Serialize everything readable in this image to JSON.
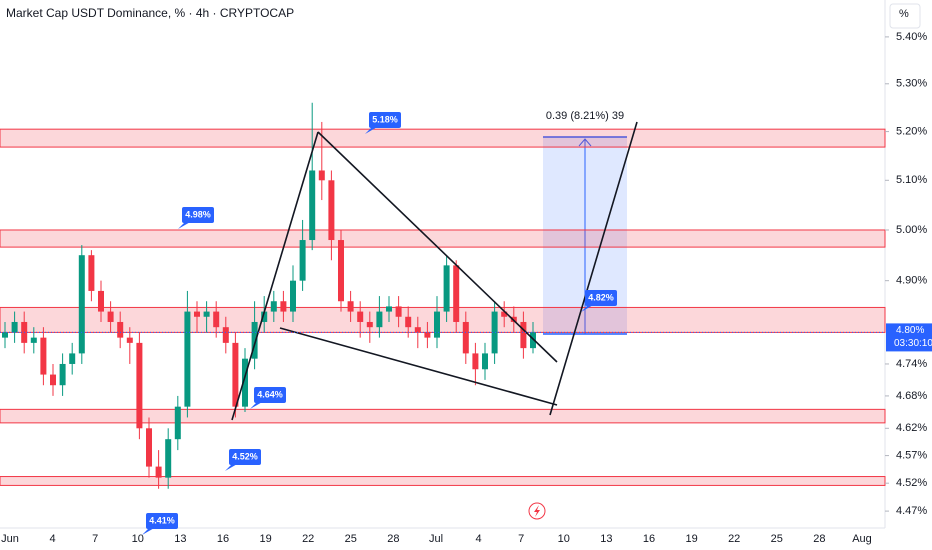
{
  "chart_data": {
    "type": "candlestick",
    "title": "Market Cap USDT Dominance, % · 4h · CRYPTOCAP",
    "y_unit": "%",
    "log_scale": true,
    "ylim": [
      4.44,
      5.48
    ],
    "yticks": [
      {
        "value": 5.4,
        "label": "5.40%"
      },
      {
        "value": 5.3,
        "label": "5.30%"
      },
      {
        "value": 5.2,
        "label": "5.20%"
      },
      {
        "value": 5.1,
        "label": "5.10%"
      },
      {
        "value": 5.0,
        "label": "5.00%"
      },
      {
        "value": 4.9,
        "label": "4.90%"
      },
      {
        "value": 4.74,
        "label": "4.74%"
      },
      {
        "value": 4.68,
        "label": "4.68%"
      },
      {
        "value": 4.62,
        "label": "4.62%"
      },
      {
        "value": 4.57,
        "label": "4.57%"
      },
      {
        "value": 4.52,
        "label": "4.52%"
      },
      {
        "value": 4.47,
        "label": "4.47%"
      }
    ],
    "x_labels": [
      "Jun",
      "4",
      "7",
      "10",
      "13",
      "16",
      "19",
      "22",
      "25",
      "28",
      "Jul",
      "4",
      "7",
      "10",
      "13",
      "16",
      "19",
      "22",
      "25",
      "28",
      "Aug"
    ],
    "up_color": "#089981",
    "down_color": "#f23645",
    "candles": {
      "open": [
        4.79,
        4.8,
        4.82,
        4.78,
        4.79,
        4.72,
        4.7,
        4.74,
        4.76,
        4.95,
        4.88,
        4.84,
        4.82,
        4.79,
        4.78,
        4.62,
        4.55,
        4.53,
        4.6,
        4.66,
        4.84,
        4.83,
        4.84,
        4.81,
        4.78,
        4.66,
        4.75,
        4.82,
        4.84,
        4.86,
        4.84,
        4.9,
        4.98,
        5.12,
        5.1,
        4.98,
        4.86,
        4.84,
        4.82,
        4.81,
        4.84,
        4.85,
        4.83,
        4.81,
        4.8,
        4.79,
        4.84,
        4.93,
        4.82,
        4.76,
        4.73,
        4.76,
        4.84,
        4.83,
        4.82,
        4.77
      ],
      "high": [
        4.82,
        4.84,
        4.84,
        4.81,
        4.81,
        4.74,
        4.76,
        4.78,
        4.97,
        4.96,
        4.9,
        4.86,
        4.84,
        4.81,
        4.8,
        4.64,
        4.58,
        4.62,
        4.68,
        4.88,
        4.86,
        4.86,
        4.86,
        4.83,
        4.8,
        4.77,
        4.86,
        4.87,
        4.88,
        4.88,
        4.93,
        5.02,
        5.26,
        5.22,
        5.12,
        5.0,
        4.88,
        4.86,
        4.84,
        4.87,
        4.87,
        4.87,
        4.85,
        4.83,
        4.82,
        4.87,
        4.95,
        4.94,
        4.84,
        4.78,
        4.78,
        4.86,
        4.86,
        4.85,
        4.84,
        4.82
      ],
      "low": [
        4.77,
        4.78,
        4.76,
        4.76,
        4.7,
        4.68,
        4.68,
        4.72,
        4.74,
        4.86,
        4.82,
        4.8,
        4.77,
        4.74,
        4.6,
        4.53,
        4.51,
        4.51,
        4.58,
        4.64,
        4.8,
        4.8,
        4.79,
        4.76,
        4.64,
        4.65,
        4.73,
        4.8,
        4.82,
        4.82,
        4.82,
        4.88,
        4.96,
        5.06,
        4.94,
        4.84,
        4.82,
        4.79,
        4.78,
        4.79,
        4.82,
        4.81,
        4.79,
        4.77,
        4.77,
        4.77,
        4.82,
        4.8,
        4.74,
        4.7,
        4.71,
        4.74,
        4.81,
        4.8,
        4.75,
        4.76
      ],
      "close": [
        4.8,
        4.82,
        4.78,
        4.79,
        4.72,
        4.7,
        4.74,
        4.76,
        4.95,
        4.88,
        4.84,
        4.82,
        4.79,
        4.78,
        4.62,
        4.55,
        4.53,
        4.6,
        4.66,
        4.84,
        4.83,
        4.84,
        4.81,
        4.78,
        4.66,
        4.75,
        4.82,
        4.84,
        4.86,
        4.84,
        4.9,
        4.98,
        5.12,
        5.1,
        4.98,
        4.86,
        4.84,
        4.82,
        4.81,
        4.84,
        4.85,
        4.83,
        4.81,
        4.8,
        4.79,
        4.84,
        4.93,
        4.82,
        4.76,
        4.73,
        4.76,
        4.84,
        4.83,
        4.82,
        4.77,
        4.8
      ]
    },
    "zones": [
      {
        "low": 5.168,
        "high": 5.205
      },
      {
        "low": 4.966,
        "high": 5.0
      },
      {
        "low": 4.8,
        "high": 4.848
      },
      {
        "low": 4.63,
        "high": 4.655
      },
      {
        "low": 4.516,
        "high": 4.532
      }
    ],
    "annotations": [
      "5.18%",
      "4.98%",
      "4.64%",
      "4.52%",
      "4.41%",
      "4.82%"
    ],
    "position_label": "0.39 (8.21%) 39",
    "last_price": {
      "value": 4.8,
      "label": "4.80%"
    },
    "countdown": "03:30:10"
  }
}
